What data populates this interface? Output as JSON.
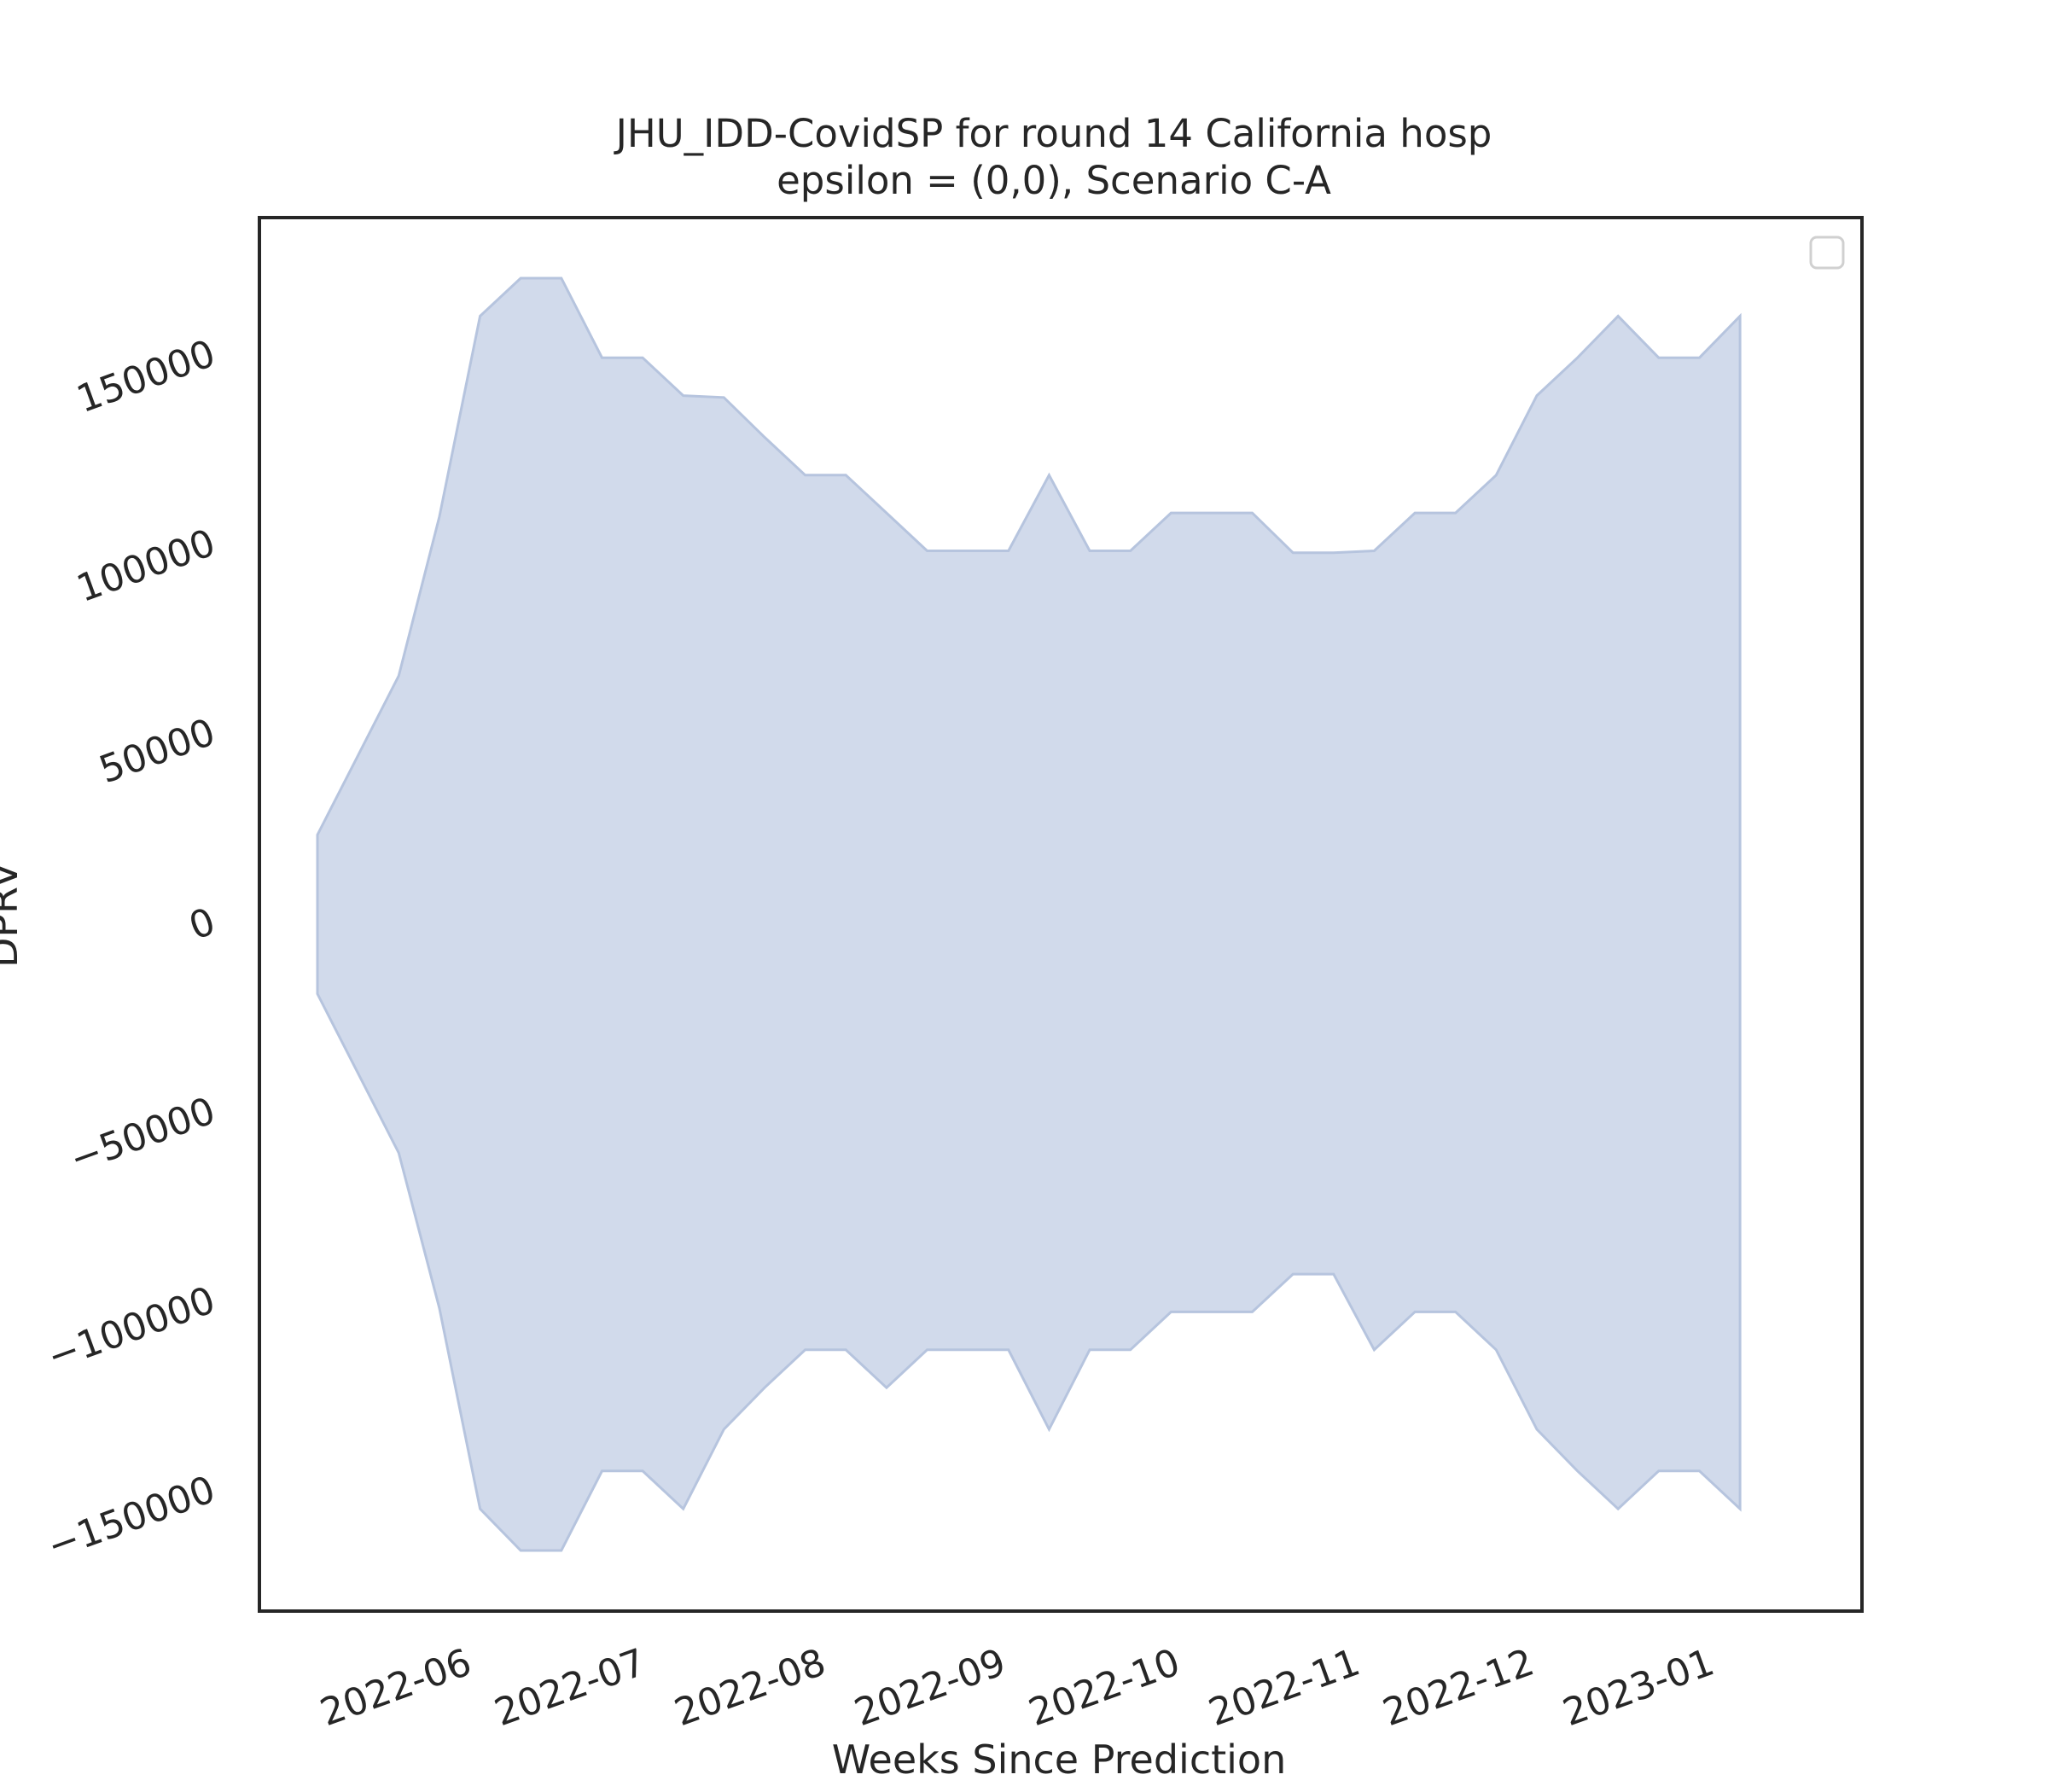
{
  "chart_data": {
    "type": "area",
    "title": "JHU_IDD-CovidSP for round 14 California hosp",
    "subtitle": "epsilon = (0,0), Scenario C-A",
    "xlabel": "Weeks Since Prediction",
    "ylabel": "DPRV",
    "x_tick_labels": [
      "2022-06",
      "2022-07",
      "2022-08",
      "2022-09",
      "2022-10",
      "2022-11",
      "2022-12",
      "2023-01"
    ],
    "y_tick_values": [
      -150000,
      -100000,
      -50000,
      0,
      50000,
      100000,
      150000
    ],
    "y_tick_labels": [
      "−150000",
      "−100000",
      "−50000",
      "0",
      "50000",
      "100000",
      "150000"
    ],
    "ylim": [
      -183000,
      185000
    ],
    "xlim": [
      "2022-04-28",
      "2023-01-29"
    ],
    "grid": false,
    "legend": "top-right (empty)",
    "fill_color": "#d1daeb",
    "edge_color": "#b6c4de",
    "x": [
      "2022-05-08",
      "2022-05-15",
      "2022-05-22",
      "2022-05-29",
      "2022-06-05",
      "2022-06-12",
      "2022-06-19",
      "2022-06-26",
      "2022-07-03",
      "2022-07-10",
      "2022-07-17",
      "2022-07-24",
      "2022-07-31",
      "2022-08-07",
      "2022-08-14",
      "2022-08-21",
      "2022-08-28",
      "2022-09-04",
      "2022-09-11",
      "2022-09-18",
      "2022-09-25",
      "2022-10-02",
      "2022-10-09",
      "2022-10-16",
      "2022-10-23",
      "2022-10-30",
      "2022-11-06",
      "2022-11-13",
      "2022-11-20",
      "2022-11-27",
      "2022-12-04",
      "2022-12-11",
      "2022-12-18",
      "2022-12-25",
      "2023-01-01",
      "2023-01-08"
    ],
    "upper": [
      22000,
      43000,
      64000,
      106000,
      159000,
      169000,
      169000,
      148000,
      148000,
      138000,
      137500,
      127000,
      117000,
      117000,
      107000,
      97000,
      97000,
      97000,
      117000,
      97000,
      97000,
      107000,
      107000,
      107000,
      96500,
      96500,
      97000,
      107000,
      107000,
      117000,
      138000,
      148000,
      159000,
      148000,
      148000,
      159000
    ],
    "lower": [
      -20000,
      -41000,
      -62000,
      -103000,
      -156000,
      -167000,
      -167000,
      -146000,
      -146000,
      -156000,
      -135000,
      -124000,
      -114000,
      -114000,
      -124000,
      -114000,
      -114000,
      -114000,
      -135000,
      -114000,
      -114000,
      -104000,
      -104000,
      -104000,
      -94000,
      -94000,
      -114000,
      -104000,
      -104000,
      -114000,
      -135000,
      -146000,
      -156000,
      -146000,
      -146000,
      -156000
    ]
  }
}
